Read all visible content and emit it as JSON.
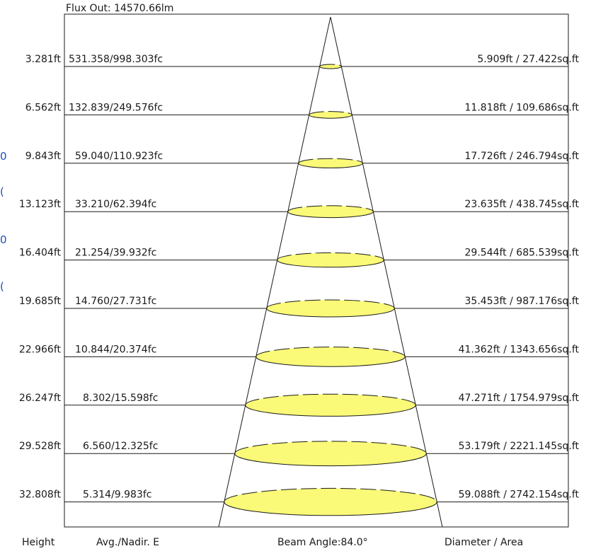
{
  "flux_out": "Flux Out: 14570.66lm",
  "footer": {
    "height": "Height",
    "avg_nadir": "Avg./Nadir. E",
    "beam_angle": "Beam Angle:84.0°",
    "diameter_area": "Diameter / Area"
  },
  "colors": {
    "spot_fill": "#fafa78",
    "line": "#1a1a1a",
    "edge_mark": "#1f4fb5"
  },
  "edge_marks": [
    "0",
    "(",
    "0",
    "("
  ],
  "rows": [
    {
      "height": "3.281ft",
      "illuminance": "531.358/998.303fc",
      "diameter_area": "5.909ft / 27.422sq.ft"
    },
    {
      "height": "6.562ft",
      "illuminance": "132.839/249.576fc",
      "diameter_area": "11.818ft / 109.686sq.ft"
    },
    {
      "height": "9.843ft",
      "illuminance": "59.040/110.923fc",
      "diameter_area": "17.726ft / 246.794sq.ft"
    },
    {
      "height": "13.123ft",
      "illuminance": "33.210/62.394fc",
      "diameter_area": "23.635ft / 438.745sq.ft"
    },
    {
      "height": "16.404ft",
      "illuminance": "21.254/39.932fc",
      "diameter_area": "29.544ft / 685.539sq.ft"
    },
    {
      "height": "19.685ft",
      "illuminance": "14.760/27.731fc",
      "diameter_area": "35.453ft / 987.176sq.ft"
    },
    {
      "height": "22.966ft",
      "illuminance": "10.844/20.374fc",
      "diameter_area": "41.362ft / 1343.656sq.ft"
    },
    {
      "height": "26.247ft",
      "illuminance": "8.302/15.598fc",
      "diameter_area": "47.271ft / 1754.979sq.ft"
    },
    {
      "height": "29.528ft",
      "illuminance": "6.560/12.325fc",
      "diameter_area": "53.179ft / 2221.145sq.ft"
    },
    {
      "height": "32.808ft",
      "illuminance": "5.314/9.983fc",
      "diameter_area": "59.088ft / 2742.154sq.ft"
    }
  ]
}
